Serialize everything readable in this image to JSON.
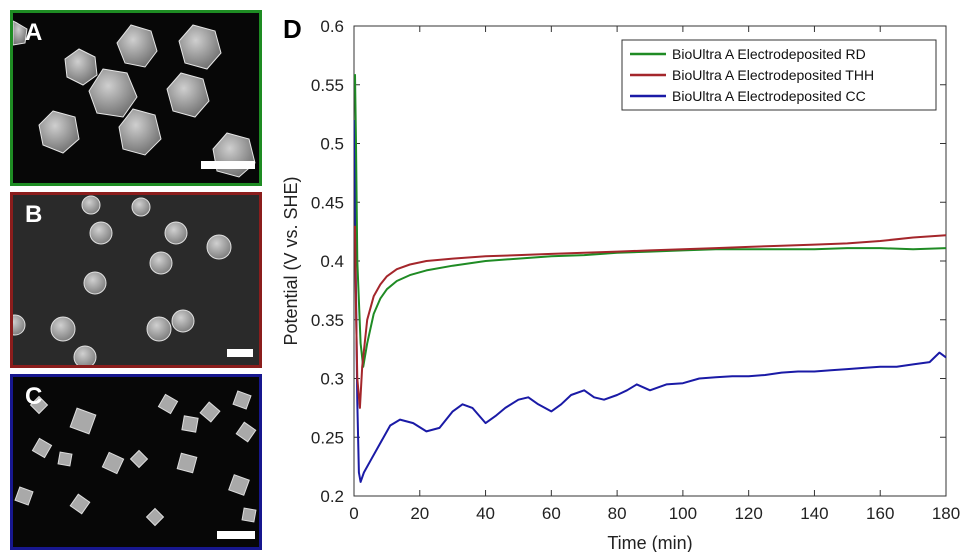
{
  "panels": {
    "a": {
      "letter": "A",
      "border_color": "#1e8c23"
    },
    "b": {
      "letter": "B",
      "border_color": "#8b1d1c"
    },
    "c": {
      "letter": "C",
      "border_color": "#17178f"
    },
    "d": {
      "letter": "D"
    }
  },
  "chart_data": {
    "type": "line",
    "title": "",
    "xlabel": "Time (min)",
    "ylabel": "Potential (V vs. SHE)",
    "xlim": [
      0,
      180
    ],
    "ylim": [
      0.2,
      0.6
    ],
    "xticks": [
      "0",
      "20",
      "40",
      "60",
      "80",
      "100",
      "120",
      "140",
      "160",
      "180"
    ],
    "yticks": [
      "0.2",
      "0.25",
      "0.3",
      "0.35",
      "0.4",
      "0.45",
      "0.5",
      "0.55",
      "0.6"
    ],
    "legend_position": "top-right",
    "grid": false,
    "series": [
      {
        "name": "BioUltra A Electrodeposited RD",
        "color": "#1f8b24",
        "x": [
          0.3,
          0.6,
          1,
          2,
          2.8,
          4,
          6,
          8,
          10,
          13,
          17,
          22,
          30,
          40,
          50,
          60,
          70,
          80,
          90,
          100,
          110,
          120,
          130,
          140,
          150,
          155,
          160,
          170,
          180
        ],
        "y": [
          0.559,
          0.5,
          0.4,
          0.33,
          0.31,
          0.33,
          0.355,
          0.368,
          0.376,
          0.383,
          0.388,
          0.392,
          0.396,
          0.4,
          0.402,
          0.404,
          0.405,
          0.407,
          0.408,
          0.409,
          0.41,
          0.41,
          0.41,
          0.41,
          0.411,
          0.411,
          0.411,
          0.41,
          0.411
        ]
      },
      {
        "name": "BioUltra A Electrodeposited THH",
        "color": "#a4262b",
        "x": [
          0.3,
          0.6,
          1,
          1.8,
          2.5,
          4,
          6,
          8,
          10,
          13,
          17,
          22,
          30,
          40,
          50,
          60,
          70,
          80,
          90,
          100,
          110,
          120,
          130,
          140,
          150,
          160,
          170,
          180
        ],
        "y": [
          0.43,
          0.36,
          0.3,
          0.275,
          0.31,
          0.35,
          0.37,
          0.38,
          0.387,
          0.393,
          0.397,
          0.4,
          0.402,
          0.404,
          0.405,
          0.406,
          0.407,
          0.408,
          0.409,
          0.41,
          0.411,
          0.412,
          0.413,
          0.414,
          0.415,
          0.417,
          0.42,
          0.422
        ]
      },
      {
        "name": "BioUltra A Electrodeposited CC",
        "color": "#1a1aa6",
        "x": [
          0.2,
          0.5,
          1,
          1.5,
          2,
          3,
          5,
          8,
          11,
          14,
          18,
          22,
          26,
          30,
          33,
          36,
          40,
          43,
          46,
          50,
          53,
          56,
          60,
          63,
          66,
          70,
          73,
          76,
          80,
          83,
          86,
          90,
          95,
          100,
          105,
          110,
          115,
          120,
          125,
          130,
          135,
          140,
          145,
          150,
          155,
          160,
          165,
          170,
          175,
          178,
          180
        ],
        "y": [
          0.52,
          0.4,
          0.28,
          0.22,
          0.212,
          0.22,
          0.23,
          0.245,
          0.26,
          0.265,
          0.262,
          0.255,
          0.258,
          0.272,
          0.278,
          0.275,
          0.262,
          0.268,
          0.275,
          0.282,
          0.284,
          0.278,
          0.272,
          0.278,
          0.286,
          0.29,
          0.284,
          0.282,
          0.286,
          0.29,
          0.295,
          0.29,
          0.295,
          0.296,
          0.3,
          0.301,
          0.302,
          0.302,
          0.303,
          0.305,
          0.306,
          0.306,
          0.307,
          0.308,
          0.309,
          0.31,
          0.31,
          0.312,
          0.314,
          0.322,
          0.318
        ]
      }
    ]
  }
}
